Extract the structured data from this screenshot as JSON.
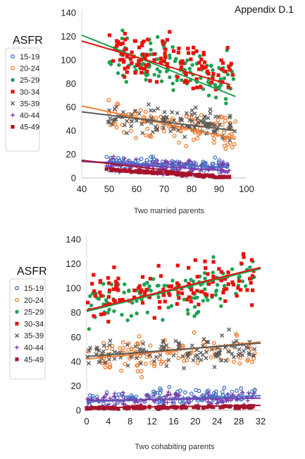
{
  "header": {
    "appendix": "Appendix D.1"
  },
  "colors": {
    "15-19": "#4472c4",
    "20-24": "#ed7d31",
    "25-29": "#1fa152",
    "30-34": "#e8120c",
    "35-39": "#595959",
    "40-44": "#7b3fb0",
    "45-49": "#a5142a"
  },
  "chart_data": [
    {
      "type": "scatter",
      "title": "",
      "xlabel": "Two married parents",
      "ylabel": "",
      "xlim": [
        40,
        100
      ],
      "ylim": [
        0,
        140
      ],
      "x_ticks": [
        40,
        50,
        60,
        70,
        80,
        90,
        100
      ],
      "y_ticks": [
        0,
        20,
        40,
        60,
        80,
        100,
        120,
        140
      ],
      "legend_title": "ASFR",
      "legend_position": "left",
      "grid": false,
      "series": [
        {
          "name": "15-19",
          "marker": "open-circle",
          "x_range": [
            49,
            93
          ],
          "y_center": 12,
          "y_spread": 9,
          "trend": [
            [
              40,
              14
            ],
            [
              93,
              9
            ]
          ]
        },
        {
          "name": "20-24",
          "marker": "open-circle",
          "x_range": [
            49,
            96
          ],
          "y_center": 45,
          "y_spread": 20,
          "trend": [
            [
              40,
              61
            ],
            [
              96,
              33
            ]
          ]
        },
        {
          "name": "25-29",
          "marker": "filled-circle",
          "x_range": [
            49,
            96
          ],
          "y_center": 98,
          "y_spread": 30,
          "trend": [
            [
              40,
              121
            ],
            [
              96,
              69
            ]
          ]
        },
        {
          "name": "30-34",
          "marker": "filled-square",
          "x_range": [
            49,
            95
          ],
          "y_center": 103,
          "y_spread": 28,
          "trend": [
            [
              40,
              116
            ],
            [
              94,
              79
            ]
          ]
        },
        {
          "name": "35-39",
          "marker": "cross",
          "x_range": [
            49,
            96
          ],
          "y_center": 48,
          "y_spread": 17,
          "trend": [
            [
              40,
              56
            ],
            [
              96,
              40
            ]
          ]
        },
        {
          "name": "40-44",
          "marker": "plus",
          "x_range": [
            49,
            94
          ],
          "y_center": 10,
          "y_spread": 9,
          "trend": [
            [
              40,
              14
            ],
            [
              94,
              6
            ]
          ]
        },
        {
          "name": "45-49",
          "marker": "filled-square",
          "x_range": [
            49,
            94
          ],
          "y_center": 1,
          "y_spread": 1.5,
          "trend": [
            [
              40,
              15
            ],
            [
              94,
              0
            ]
          ]
        }
      ]
    },
    {
      "type": "scatter",
      "title": "",
      "xlabel": "Two cohabiting parents",
      "ylabel": "",
      "xlim": [
        0,
        32
      ],
      "ylim": [
        0,
        140
      ],
      "x_ticks": [
        0,
        4,
        8,
        12,
        16,
        20,
        24,
        28,
        32
      ],
      "y_ticks": [
        0,
        20,
        40,
        60,
        80,
        100,
        120,
        140
      ],
      "legend_title": "ASFR",
      "legend_position": "left",
      "grid": false,
      "series": [
        {
          "name": "15-19",
          "marker": "open-circle",
          "x_range": [
            0,
            31
          ],
          "y_center": 12,
          "y_spread": 10,
          "trend": [
            [
              0,
              7
            ],
            [
              32,
              12
            ]
          ]
        },
        {
          "name": "20-24",
          "marker": "open-circle",
          "x_range": [
            0,
            31
          ],
          "y_center": 44,
          "y_spread": 20,
          "trend": [
            [
              0,
              42
            ],
            [
              32,
              56
            ]
          ]
        },
        {
          "name": "25-29",
          "marker": "filled-circle",
          "x_range": [
            0,
            31
          ],
          "y_center": 98,
          "y_spread": 28,
          "trend": [
            [
              0,
              81
            ],
            [
              32,
              116
            ]
          ]
        },
        {
          "name": "30-34",
          "marker": "filled-square",
          "x_range": [
            0,
            31
          ],
          "y_center": 100,
          "y_spread": 28,
          "trend": [
            [
              0,
              82
            ],
            [
              32,
              117
            ]
          ]
        },
        {
          "name": "35-39",
          "marker": "cross",
          "x_range": [
            0,
            31
          ],
          "y_center": 44,
          "y_spread": 18,
          "trend": [
            [
              0,
              44
            ],
            [
              32,
              55
            ]
          ]
        },
        {
          "name": "40-44",
          "marker": "plus",
          "x_range": [
            0,
            31
          ],
          "y_center": 9,
          "y_spread": 8,
          "trend": [
            [
              0,
              8
            ],
            [
              32,
              10
            ]
          ]
        },
        {
          "name": "45-49",
          "marker": "filled-square",
          "x_range": [
            0,
            31
          ],
          "y_center": 1.5,
          "y_spread": 1.5,
          "trend": [
            [
              0,
              2
            ],
            [
              32,
              4
            ]
          ]
        }
      ]
    }
  ]
}
